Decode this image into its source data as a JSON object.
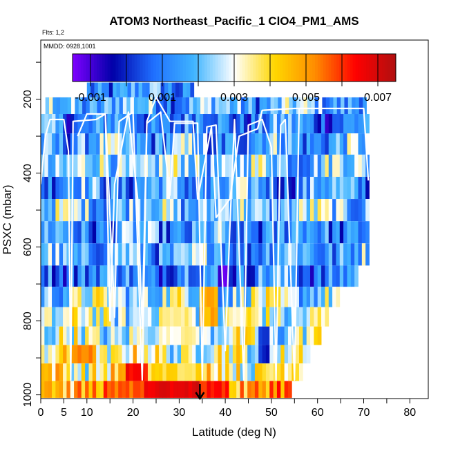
{
  "chart_data": {
    "type": "heatmap",
    "title": "ATOM3 Northeast_Pacific_1 ClO4_PM1_AMS",
    "flights_label": "Flts: 1,2",
    "dates_label": "MMDD: 0928,1001",
    "xlabel": "Latitude (deg N)",
    "ylabel": "PSXC (mbar)",
    "xlim": [
      0,
      84
    ],
    "ylim": [
      1010,
      40
    ],
    "x_ticks": [
      0,
      5,
      10,
      20,
      30,
      40,
      50,
      60,
      70,
      80
    ],
    "y_ticks": [
      200,
      400,
      600,
      800,
      1000
    ],
    "colorbar": {
      "range": [
        -0.0015,
        0.0075
      ],
      "tick_values": [
        -0.001,
        0.001,
        0.003,
        0.005,
        0.007
      ],
      "tick_labels": [
        "-0.001",
        "0.001",
        "0.003",
        "0.005",
        "0.007"
      ],
      "colors": [
        "#7f00ff",
        "#0000a8",
        "#1f6fff",
        "#3fb4ff",
        "#ffffff",
        "#ffd700",
        "#ff8c00",
        "#ff0000",
        "#b01010"
      ]
    },
    "marker": {
      "label": "arrow",
      "latitude": 34.5
    },
    "rows": [
      {
        "p": 175,
        "lat": [
          10,
          33
        ],
        "value": 0.0012
      },
      {
        "p": 215,
        "lat": [
          1,
          70
        ],
        "value": 0.0018
      },
      {
        "p": 265,
        "lat": [
          0,
          71
        ],
        "value": 0.0011
      },
      {
        "p": 320,
        "lat": [
          0,
          70
        ],
        "value": 0.0016
      },
      {
        "p": 380,
        "lat": [
          0,
          71
        ],
        "value": 0.0022
      },
      {
        "p": 440,
        "lat": [
          0,
          71
        ],
        "value": 0.0014
      },
      {
        "p": 500,
        "lat": [
          0,
          71
        ],
        "value": 0.0021
      },
      {
        "p": 560,
        "lat": [
          0,
          71
        ],
        "value": 0.0013
      },
      {
        "p": 620,
        "lat": [
          0,
          71
        ],
        "value": 0.0017
      },
      {
        "p": 680,
        "lat": [
          0,
          68
        ],
        "value": 0.0012
      },
      {
        "p": 735,
        "lat": [
          0,
          64
        ],
        "value": 0.0025
      },
      {
        "p": 790,
        "lat": [
          0,
          62
        ],
        "value": 0.0028
      },
      {
        "p": 840,
        "lat": [
          0,
          60
        ],
        "value": 0.0027
      },
      {
        "p": 890,
        "lat": [
          0,
          58
        ],
        "value": 0.0032
      },
      {
        "p": 940,
        "lat": [
          0,
          56
        ],
        "value": 0.0038
      },
      {
        "p": 985,
        "lat": [
          0,
          54
        ],
        "value": 0.005
      }
    ],
    "hot_spots": [
      {
        "lat": [
          22,
          34
        ],
        "p": [
          965,
          1005
        ],
        "value": 0.0068
      },
      {
        "lat": [
          14,
          22
        ],
        "p": [
          965,
          1005
        ],
        "value": 0.0055
      },
      {
        "lat": [
          34,
          40
        ],
        "p": [
          965,
          1005
        ],
        "value": 0.0062
      },
      {
        "lat": [
          6,
          12
        ],
        "p": [
          860,
          905
        ],
        "value": 0.0052
      },
      {
        "lat": [
          18,
          23
        ],
        "p": [
          905,
          960
        ],
        "value": 0.0063
      },
      {
        "lat": [
          24,
          36
        ],
        "p": [
          905,
          960
        ],
        "value": 0.004
      },
      {
        "lat": [
          34,
          38
        ],
        "p": [
          720,
          790
        ],
        "value": 0.0048
      },
      {
        "lat": [
          25,
          33
        ],
        "p": [
          760,
          840
        ],
        "value": 0.0034
      },
      {
        "lat": [
          38,
          40
        ],
        "p": [
          660,
          700
        ],
        "value": -0.001
      },
      {
        "lat": [
          47,
          49
        ],
        "p": [
          840,
          900
        ],
        "value": 0.0001
      },
      {
        "lat": [
          36,
          38
        ],
        "p": [
          270,
          330
        ],
        "value": 0.0
      },
      {
        "lat": [
          40,
          42
        ],
        "p": [
          540,
          580
        ],
        "value": 0.0
      }
    ],
    "flight_tracks": [
      [
        [
          0,
          430
        ],
        [
          1,
          300
        ],
        [
          2,
          255
        ],
        [
          5,
          255
        ],
        [
          6,
          340
        ],
        [
          6.5,
          960
        ],
        [
          7,
          260
        ],
        [
          12,
          255
        ],
        [
          14,
          240
        ],
        [
          16,
          790
        ],
        [
          17,
          260
        ],
        [
          20,
          235
        ],
        [
          22,
          960
        ],
        [
          23,
          265
        ],
        [
          26,
          235
        ],
        [
          28,
          460
        ],
        [
          29,
          265
        ],
        [
          34,
          265
        ],
        [
          35,
          960
        ],
        [
          36,
          275
        ],
        [
          38,
          270
        ],
        [
          40,
          880
        ],
        [
          41,
          545
        ],
        [
          42,
          255
        ],
        [
          44,
          960
        ],
        [
          45,
          270
        ],
        [
          48,
          255
        ],
        [
          50,
          330
        ],
        [
          51,
          960
        ],
        [
          52,
          270
        ],
        [
          53,
          255
        ],
        [
          55,
          960
        ],
        [
          56,
          225
        ],
        [
          58,
          225
        ]
      ],
      [
        [
          8,
          300
        ],
        [
          10,
          240
        ],
        [
          14,
          240
        ],
        [
          15,
          800
        ],
        [
          16,
          430
        ],
        [
          19,
          235
        ],
        [
          21,
          470
        ],
        [
          22,
          820
        ],
        [
          23,
          260
        ],
        [
          25,
          195
        ],
        [
          28,
          260
        ],
        [
          33,
          260
        ],
        [
          34,
          470
        ],
        [
          37,
          275
        ],
        [
          38,
          520
        ],
        [
          41,
          470
        ],
        [
          43,
          300
        ],
        [
          47,
          280
        ],
        [
          48,
          230
        ],
        [
          55,
          225
        ],
        [
          70,
          225
        ],
        [
          71,
          420
        ]
      ]
    ]
  }
}
